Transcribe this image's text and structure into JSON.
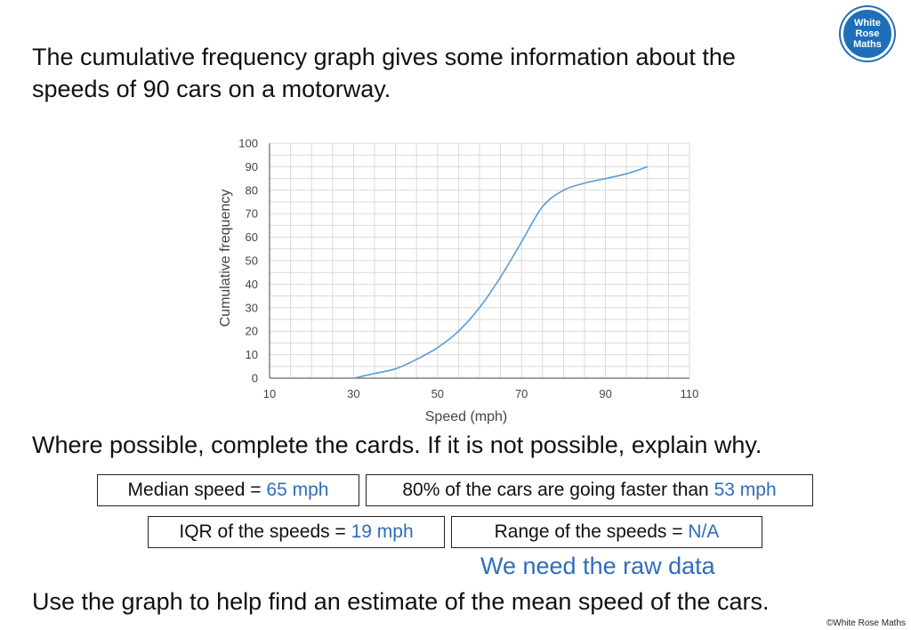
{
  "intro": {
    "line1": "The cumulative frequency graph gives some information about the",
    "line2": "speeds of 90 cars on a motorway."
  },
  "logo": {
    "line1": "White",
    "line2": "Rose",
    "line3": "Maths"
  },
  "prompt": "Where possible, complete the cards.  If it is not possible, explain why.",
  "cards": {
    "median": {
      "label": "Median speed = ",
      "value": "65 mph"
    },
    "eighty": {
      "label": "80% of the cars are going faster than ",
      "value": "53 mph"
    },
    "iqr": {
      "label": "IQR of the speeds = ",
      "value": "19 mph"
    },
    "range": {
      "label": "Range of the speeds = ",
      "value": "N/A"
    }
  },
  "raw_note": "We need the raw data",
  "question": "Use the graph to help find an estimate of the mean speed of the cars.",
  "copyright": "©White Rose Maths",
  "colors": {
    "answer": "#2e6dbd",
    "curve": "#5b9bd5",
    "grid": "#d9d9d9",
    "logo": "#1e6fb8"
  },
  "chart_data": {
    "type": "line",
    "title": "",
    "xlabel": "Speed (mph)",
    "ylabel": "Cumulative frequency",
    "xlim": [
      10,
      110
    ],
    "ylim": [
      0,
      100
    ],
    "x_ticks": [
      10,
      30,
      50,
      70,
      90,
      110
    ],
    "y_ticks": [
      0,
      10,
      20,
      30,
      40,
      50,
      60,
      70,
      80,
      90,
      100
    ],
    "grid": true,
    "series": [
      {
        "name": "Cumulative frequency",
        "x": [
          30,
          35,
          40,
          45,
          50,
          55,
          60,
          65,
          70,
          75,
          80,
          85,
          90,
          95,
          100
        ],
        "y": [
          0,
          2,
          4,
          8,
          13,
          20,
          30,
          43,
          58,
          73,
          80,
          83,
          85,
          87,
          90
        ]
      }
    ]
  }
}
